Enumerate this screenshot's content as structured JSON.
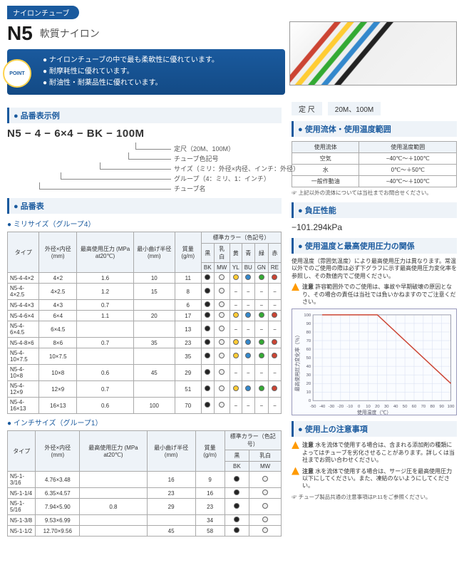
{
  "category": "ナイロンチューブ",
  "product_code": "N5",
  "product_name": "軟質ナイロン",
  "point_badge": "POINT",
  "points": [
    "ナイロンチューブの中で最も柔軟性に優れています。",
    "耐摩耗性に優れています。",
    "耐油性・耐薬品性に優れています。"
  ],
  "sec_example_title": "品番表示例",
  "example_code": "N5 − 4 − 6×4 − BK − 100M",
  "tree_labels": [
    "定尺（20M、100M）",
    "チューブ色記号",
    "サイズ（ミリ：外径×内径、インチ：外径）",
    "グループ（4：ミリ、1：インチ）",
    "チューブ名"
  ],
  "sec_part_title": "品番表",
  "subtitle_mm": "ミリサイズ（グループ4）",
  "headers_mm": [
    "タイプ",
    "外径×内径\n(mm)",
    "最高使用圧力\n(MPa at20℃)",
    "最小曲げ半径\n(mm)",
    "質量\n(g/m)",
    "標準カラー（色記号）"
  ],
  "color_headers": [
    "黒",
    "乳白",
    "黄",
    "青",
    "緑",
    "赤"
  ],
  "color_codes": [
    "BK",
    "MW",
    "YL",
    "BU",
    "GN",
    "RE"
  ],
  "color_hex": [
    "#222",
    "#eee",
    "#fc3",
    "#38c",
    "#3a3",
    "#c43"
  ],
  "rows_mm": [
    {
      "type": "N5-4-4×2",
      "dim": "4×2",
      "press": "1.6",
      "bend": "10",
      "mass": "11",
      "c": [
        1,
        1,
        1,
        1,
        1,
        1
      ]
    },
    {
      "type": "N5-4-4×2.5",
      "dim": "4×2.5",
      "press": "1.2",
      "bend": "15",
      "mass": "8",
      "c": [
        1,
        1,
        0,
        0,
        0,
        0
      ]
    },
    {
      "type": "N5-4-4×3",
      "dim": "4×3",
      "press": "0.7",
      "bend": "",
      "mass": "6",
      "c": [
        1,
        1,
        0,
        0,
        0,
        0
      ]
    },
    {
      "type": "N5-4-6×4",
      "dim": "6×4",
      "press": "1.1",
      "bend": "20",
      "mass": "17",
      "c": [
        1,
        1,
        1,
        1,
        1,
        1
      ]
    },
    {
      "type": "N5-4-6×4.5",
      "dim": "6×4.5",
      "press": "",
      "bend": "",
      "mass": "13",
      "c": [
        1,
        1,
        0,
        0,
        0,
        0
      ]
    },
    {
      "type": "N5-4-8×6",
      "dim": "8×6",
      "press": "0.7",
      "bend": "35",
      "mass": "23",
      "c": [
        1,
        1,
        1,
        1,
        1,
        1
      ]
    },
    {
      "type": "N5-4-10×7.5",
      "dim": "10×7.5",
      "press": "",
      "bend": "",
      "mass": "35",
      "c": [
        1,
        1,
        1,
        1,
        1,
        1
      ]
    },
    {
      "type": "N5-4-10×8",
      "dim": "10×8",
      "press": "0.6",
      "bend": "45",
      "mass": "29",
      "c": [
        1,
        1,
        0,
        0,
        0,
        0
      ]
    },
    {
      "type": "N5-4-12×9",
      "dim": "12×9",
      "press": "0.7",
      "bend": "",
      "mass": "51",
      "c": [
        1,
        1,
        1,
        1,
        1,
        1
      ]
    },
    {
      "type": "N5-4-16×13",
      "dim": "16×13",
      "press": "0.6",
      "bend": "100",
      "mass": "70",
      "c": [
        1,
        1,
        0,
        0,
        0,
        0
      ]
    }
  ],
  "subtitle_inch": "インチサイズ（グループ1）",
  "color_headers_inch": [
    "黒",
    "乳白"
  ],
  "color_codes_inch": [
    "BK",
    "MW"
  ],
  "rows_inch": [
    {
      "type": "N5-1-3/16",
      "dim": "4.76×3.48",
      "press": "",
      "bend": "16",
      "mass": "9",
      "c": [
        1,
        1
      ]
    },
    {
      "type": "N5-1-1/4",
      "dim": "6.35×4.57",
      "press": "",
      "bend": "23",
      "mass": "16",
      "c": [
        1,
        1
      ]
    },
    {
      "type": "N5-1-5/16",
      "dim": "7.94×5.90",
      "press": "0.8",
      "bend": "29",
      "mass": "23",
      "c": [
        1,
        1
      ]
    },
    {
      "type": "N5-1-3/8",
      "dim": "9.53×6.99",
      "press": "",
      "bend": "",
      "mass": "34",
      "c": [
        1,
        1
      ]
    },
    {
      "type": "N5-1-1/2",
      "dim": "12.70×9.56",
      "press": "",
      "bend": "45",
      "mass": "58",
      "c": [
        1,
        1
      ]
    }
  ],
  "teijaku_label": "定 尺",
  "teijaku_value": "20M、100M",
  "sec_fluid_title": "使用流体・使用温度範囲",
  "fluid_headers": [
    "使用流体",
    "使用温度範囲"
  ],
  "fluid_rows": [
    [
      "空気",
      "−40℃〜＋100℃"
    ],
    [
      "水",
      "0℃〜＋50℃"
    ],
    [
      "一般作動油",
      "−40℃〜＋100℃"
    ]
  ],
  "fluid_footnote": "上記以外の流体については当社までお問合せください。",
  "sec_vac_title": "負圧性能",
  "vac_value": "−101.294kPa",
  "sec_graph_title": "使用温度と最高使用圧力の関係",
  "graph_intro": "使用温度（雰囲気温度）により最高使用圧力は異なります。常温以外でのご使用の際は必ず下グラフに示す最高使用圧力変化率を参照し、その数値内でご使用ください。",
  "graph_note": "許容範囲外でのご使用は、事故や早期破壊の原因となり、その場合の責任は当社では負いかねますのでご注意ください。",
  "chart": {
    "xlabel": "使用温度（℃）",
    "ylabel": "最高使用圧力変化率（％）",
    "xlim": [
      -50,
      100
    ],
    "xtick": 10,
    "ylim": [
      0,
      100
    ],
    "ytick": 10,
    "bg": "#fafcff",
    "grid": "#d5dcf0",
    "line": "#c43",
    "line_width": 1.5,
    "points": [
      [
        -40,
        100
      ],
      [
        20,
        100
      ],
      [
        100,
        20
      ]
    ]
  },
  "sec_caution_title": "使用上の注意事項",
  "cautions": [
    "水を流体で使用する場合は、含まれる添加剤の種類によってはチューブを劣化させることがあります。詳しくは当社までお問い合わせください。",
    "水を流体で使用する場合は、サージ圧を最高使用圧力以下にしてください。また、凍結のないようにしてください。"
  ],
  "caution_footnote": "チューブ製品共通の注意事項はP.11をご参照ください。",
  "note_label": "注意"
}
